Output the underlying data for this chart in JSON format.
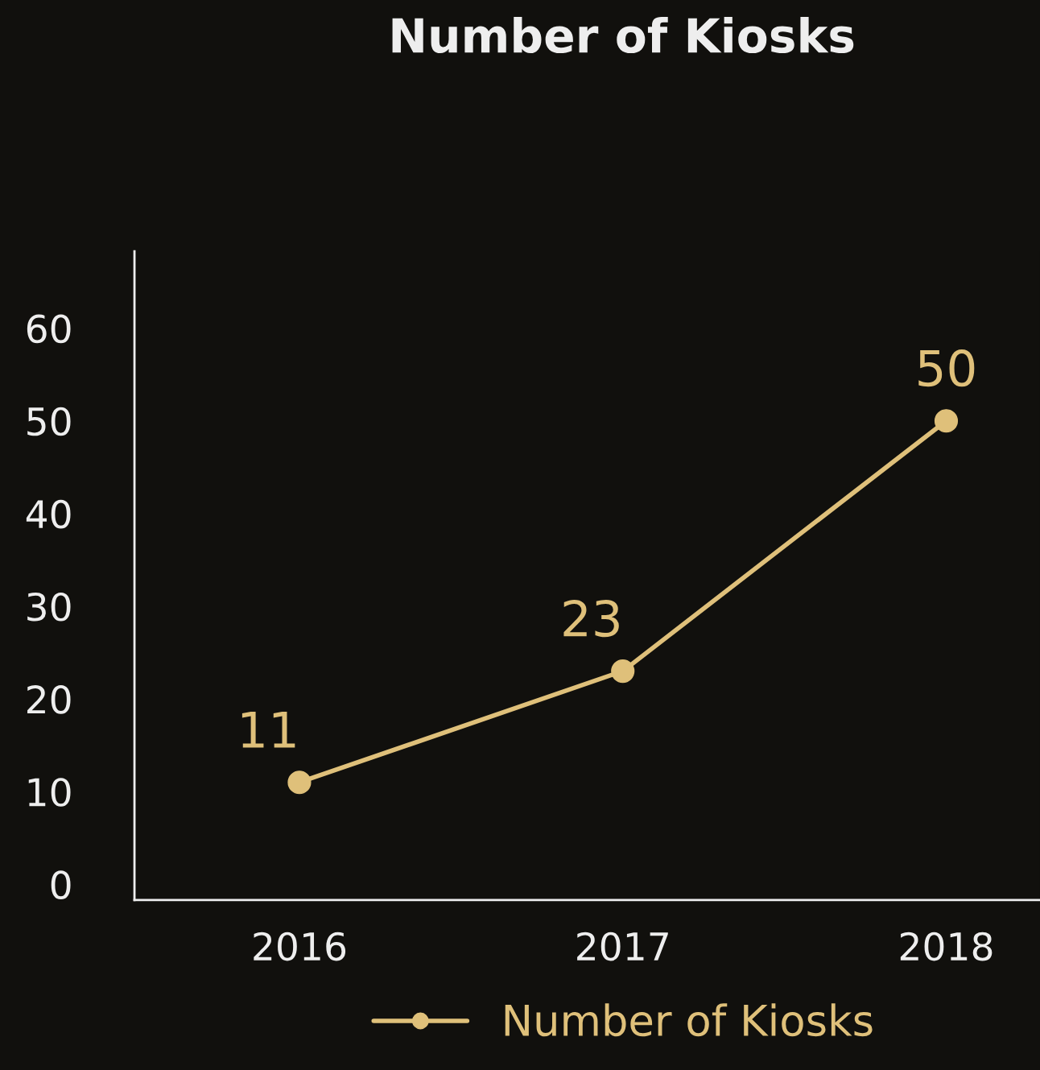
{
  "chart_data": {
    "type": "line",
    "title": "Number of Kiosks",
    "categories": [
      "2016",
      "2017",
      "2018"
    ],
    "series": [
      {
        "name": "Number of Kiosks",
        "color": "#dfc07a",
        "values": [
          11,
          23,
          50
        ]
      }
    ],
    "ylim": [
      -1.7,
      68.3
    ],
    "yticks": [
      0,
      10,
      20,
      30,
      40,
      50,
      60
    ],
    "grid": false,
    "legend": "bottom",
    "marker": "circle",
    "line_style": "solid",
    "data_labels": true
  }
}
